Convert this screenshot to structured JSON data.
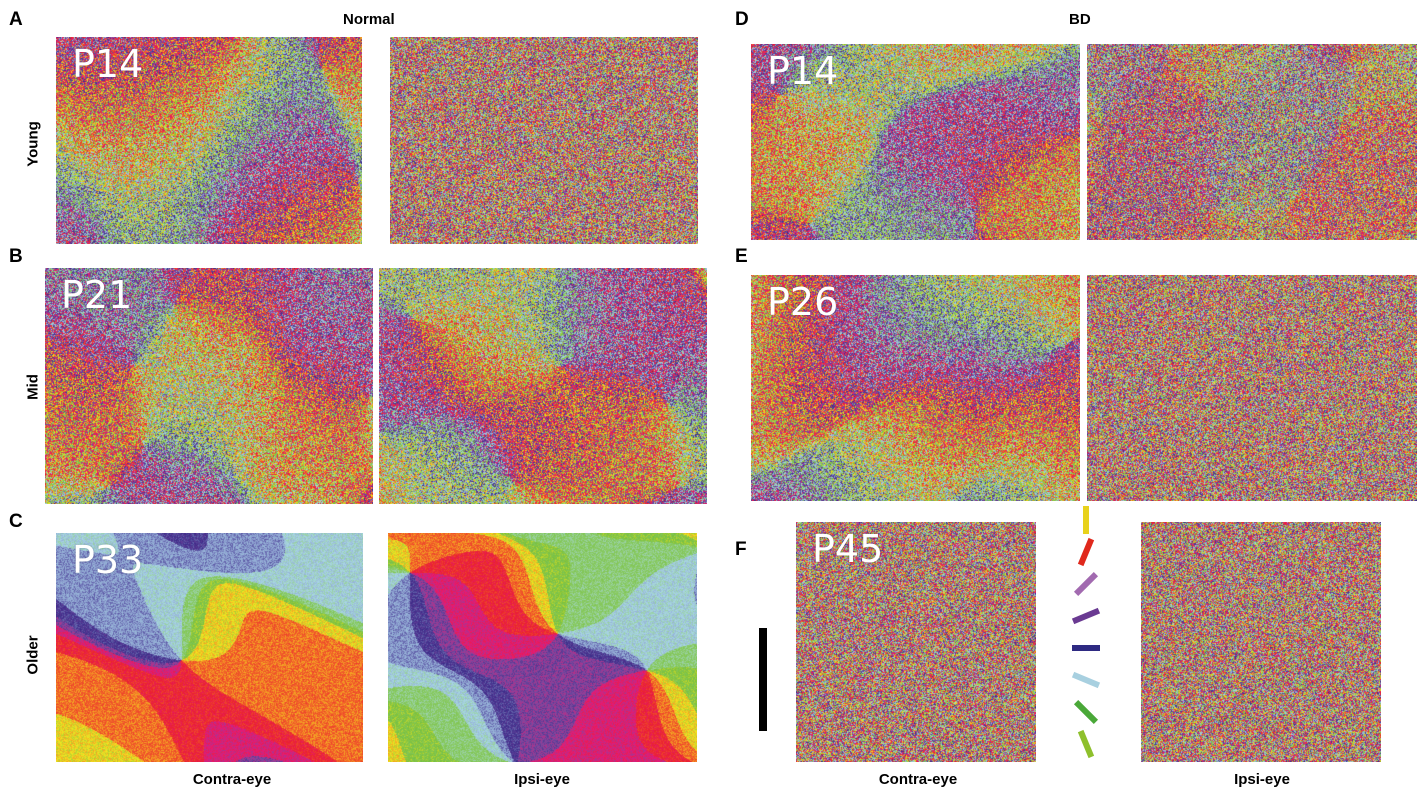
{
  "figure": {
    "left_heading": "Normal",
    "right_heading": "BD",
    "panel_letters": {
      "A": "A",
      "B": "B",
      "C": "C",
      "D": "D",
      "E": "E",
      "F": "F"
    },
    "row_labels": {
      "young": "Young",
      "mid": "Mid",
      "older": "Older"
    },
    "column_labels": {
      "contra": "Contra-eye",
      "ipsi": "Ipsi-eye"
    },
    "panels": {
      "A_contra": {
        "age": "P14",
        "pattern": "structured"
      },
      "A_ipsi": {
        "age": "",
        "pattern": "noise"
      },
      "B_contra": {
        "age": "P21",
        "pattern": "structured"
      },
      "B_ipsi": {
        "age": "",
        "pattern": "structured"
      },
      "C_contra": {
        "age": "P33",
        "pattern": "sharp"
      },
      "C_ipsi": {
        "age": "",
        "pattern": "sharp"
      },
      "D_contra": {
        "age": "P14",
        "pattern": "structured"
      },
      "D_ipsi": {
        "age": "",
        "pattern": "weak"
      },
      "E_contra": {
        "age": "P26",
        "pattern": "structured"
      },
      "E_ipsi": {
        "age": "",
        "pattern": "noise"
      },
      "F_contra": {
        "age": "P45",
        "pattern": "noise"
      },
      "F_ipsi": {
        "age": "",
        "pattern": "noise"
      }
    },
    "orientation_key": [
      {
        "angle_deg": 0,
        "color": "#e8d21c"
      },
      {
        "angle_deg": 22.5,
        "color": "#e0281c"
      },
      {
        "angle_deg": 45,
        "color": "#a26ab0"
      },
      {
        "angle_deg": 67.5,
        "color": "#6a3a92"
      },
      {
        "angle_deg": 90,
        "color": "#2e2a82"
      },
      {
        "angle_deg": 112.5,
        "color": "#a8d0e0"
      },
      {
        "angle_deg": 135,
        "color": "#4aa838"
      },
      {
        "angle_deg": 157.5,
        "color": "#8ec02c"
      }
    ],
    "map_palette": [
      "#ea2030",
      "#f26a28",
      "#f4e620",
      "#78c040",
      "#8ccc6a",
      "#a8d6e6",
      "#8898cc",
      "#3c2a88",
      "#7a4aa0",
      "#e41a78"
    ]
  }
}
